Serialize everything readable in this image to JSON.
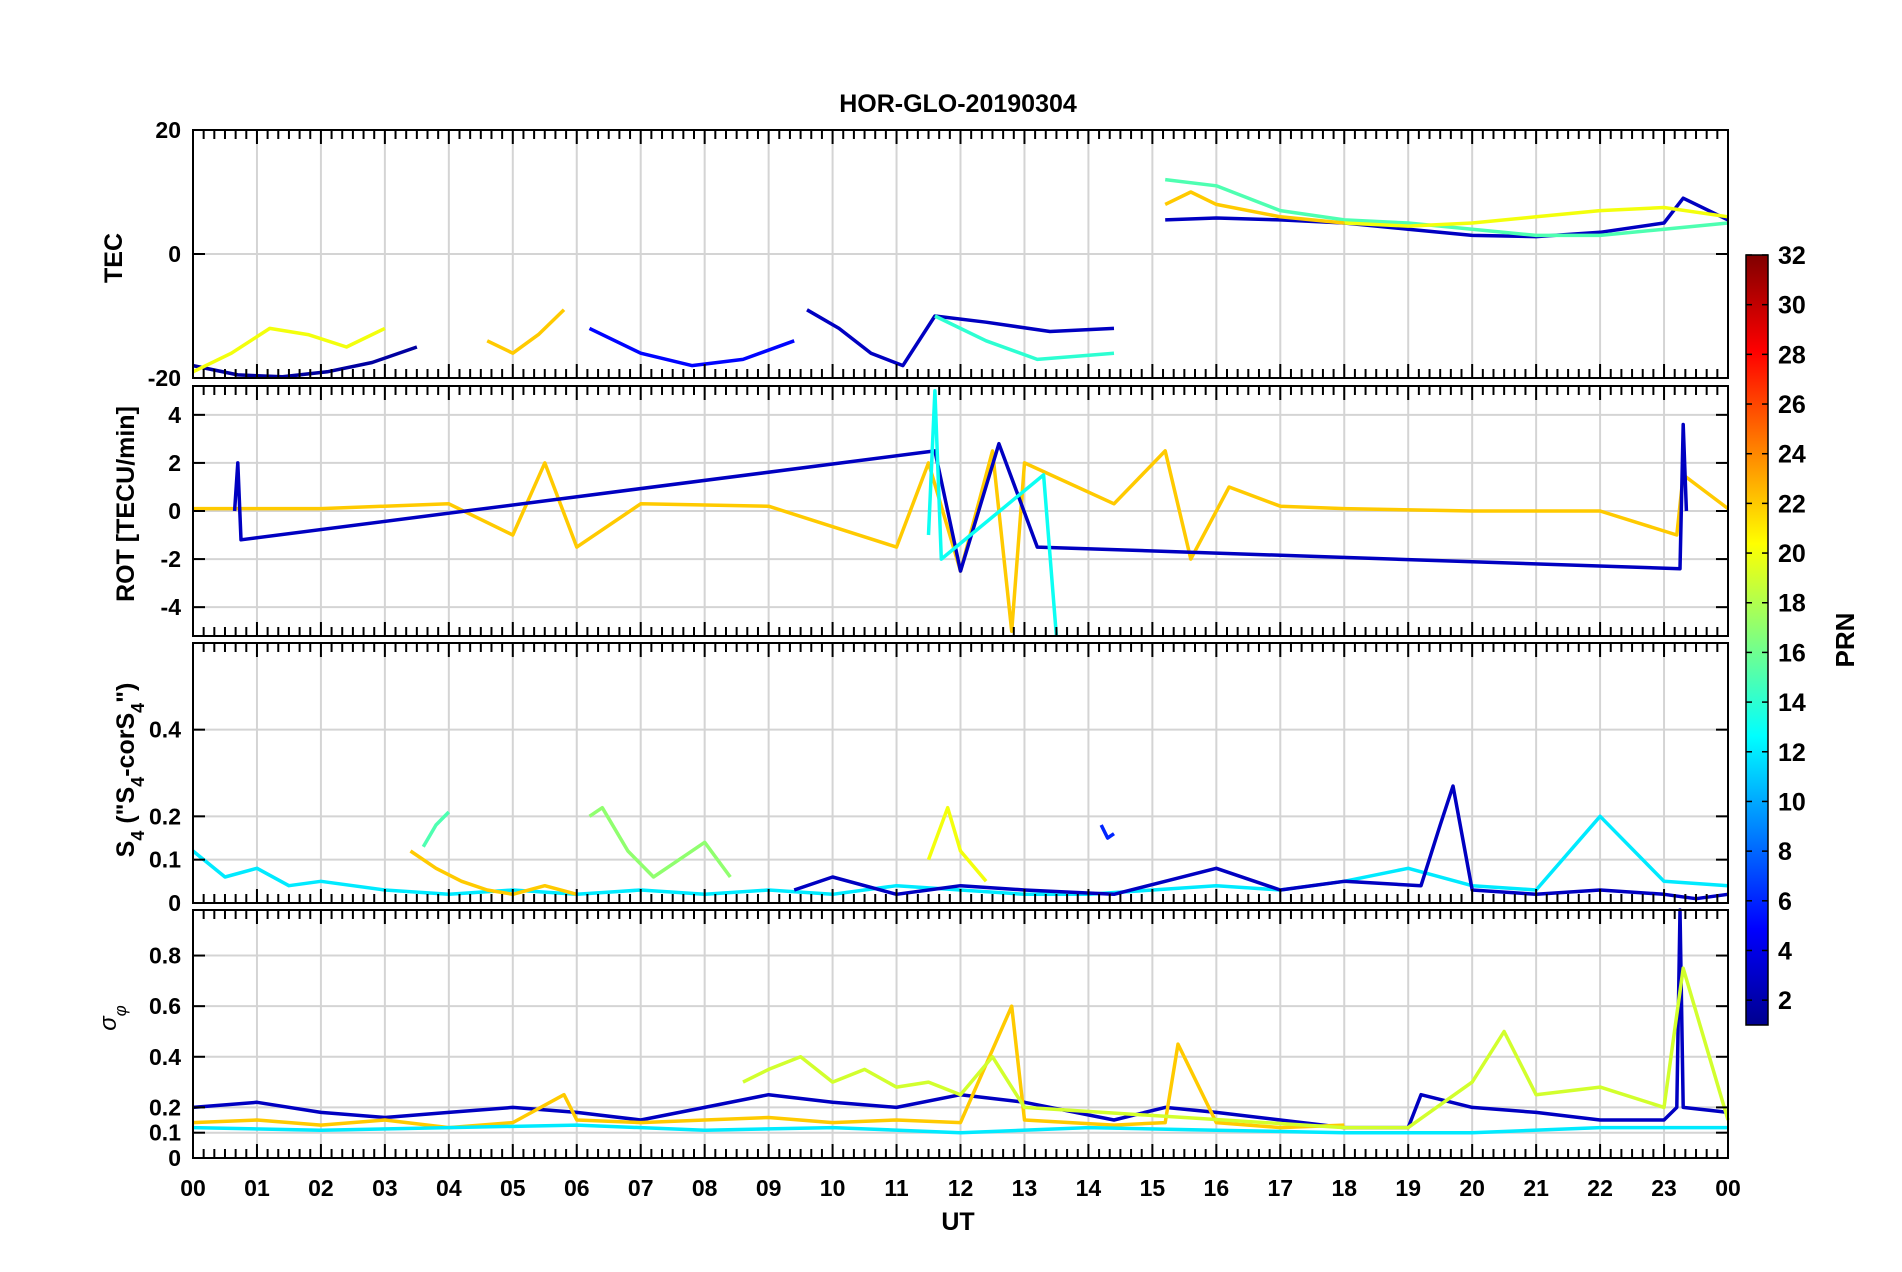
{
  "figure": {
    "title": "HOR-GLO-20190304",
    "xlabel": "UT",
    "x_tick_labels": [
      "00",
      "01",
      "02",
      "03",
      "04",
      "05",
      "06",
      "07",
      "08",
      "09",
      "10",
      "11",
      "12",
      "13",
      "14",
      "15",
      "16",
      "17",
      "18",
      "19",
      "20",
      "21",
      "22",
      "23",
      "00"
    ]
  },
  "colorbar": {
    "label": "PRN",
    "range": [
      1,
      32
    ],
    "tick_labels": [
      "2",
      "4",
      "6",
      "8",
      "10",
      "12",
      "14",
      "16",
      "18",
      "20",
      "22",
      "24",
      "26",
      "28",
      "30",
      "32"
    ],
    "tick_values": [
      2,
      4,
      6,
      8,
      10,
      12,
      14,
      16,
      18,
      20,
      22,
      24,
      26,
      28,
      30,
      32
    ]
  },
  "chart_data": [
    {
      "type": "line",
      "panel": "TEC",
      "ylabel": "TEC",
      "ylim": [
        -20,
        20
      ],
      "xlim": [
        0,
        24
      ],
      "grid": true,
      "y_ticks": [
        -20,
        0,
        20
      ],
      "y_tick_labels": [
        "-20",
        "0",
        "20"
      ],
      "series": [
        {
          "name": "PRN 2",
          "prn": 2,
          "x": [
            0,
            0.7,
            1.4,
            2.1,
            2.8,
            3.5
          ],
          "y": [
            -18,
            -19.5,
            -19.8,
            -19,
            -17.5,
            -15
          ]
        },
        {
          "name": "PRN 5",
          "prn": 5,
          "x": [
            6.2,
            7,
            7.8,
            8.6,
            9.4
          ],
          "y": [
            -12,
            -16,
            -18,
            -17,
            -14
          ]
        },
        {
          "name": "PRN 3",
          "prn": 3,
          "x": [
            9.6,
            10.1,
            10.6,
            11.1,
            11.6,
            12.4,
            13.4,
            14.4
          ],
          "y": [
            -9,
            -12,
            -16,
            -18,
            -10,
            -11,
            -12.5,
            -12
          ]
        },
        {
          "name": "PRN 20",
          "prn": 20,
          "x": [
            0,
            0.6,
            1.2,
            1.8,
            2.4,
            3
          ],
          "y": [
            -19,
            -16,
            -12,
            -13,
            -15,
            -12
          ]
        },
        {
          "name": "PRN 22",
          "prn": 22,
          "x": [
            4.6,
            5,
            5.4,
            5.8
          ],
          "y": [
            -14,
            -16,
            -13,
            -9
          ]
        },
        {
          "name": "PRN 14",
          "prn": 14,
          "x": [
            11.6,
            12.4,
            13.2,
            14.4
          ],
          "y": [
            -10,
            -14,
            -17,
            -16
          ]
        },
        {
          "name": "PRN 3",
          "prn": 3,
          "x": [
            15.2,
            16,
            17,
            18,
            19,
            20,
            21,
            22,
            23,
            23.3,
            24
          ],
          "y": [
            5.5,
            5.8,
            5.5,
            5,
            4,
            3,
            2.8,
            3.5,
            5,
            9,
            5.5
          ]
        },
        {
          "name": "PRN 15",
          "prn": 15,
          "x": [
            15.2,
            16,
            17,
            18,
            19,
            20,
            21,
            22,
            23,
            24
          ],
          "y": [
            12,
            11,
            7,
            5.5,
            5,
            4,
            3,
            3,
            4,
            5
          ]
        },
        {
          "name": "PRN 22",
          "prn": 22,
          "x": [
            15.2,
            15.6,
            16,
            17,
            18
          ],
          "y": [
            8,
            10,
            8,
            6,
            5
          ]
        },
        {
          "name": "PRN 20",
          "prn": 20,
          "x": [
            18,
            19,
            20,
            21,
            22,
            23,
            24
          ],
          "y": [
            5,
            4.5,
            5,
            6,
            7,
            7.5,
            6
          ]
        }
      ]
    },
    {
      "type": "line",
      "panel": "ROT",
      "ylabel": "ROT [TECU/min]",
      "ylim": [
        -5.2,
        5.2
      ],
      "xlim": [
        0,
        24
      ],
      "grid": true,
      "y_ticks": [
        -4,
        -2,
        0,
        2,
        4
      ],
      "y_tick_labels": [
        "-4",
        "-2",
        "0",
        "2",
        "4"
      ],
      "series": [
        {
          "name": "PRN 22",
          "prn": 22,
          "x": [
            0,
            2,
            4,
            5,
            5.5,
            6,
            7,
            9,
            11,
            11.5,
            12,
            12.5,
            12.8,
            13,
            14.4,
            15.2,
            15.6,
            16.2,
            17,
            18,
            20,
            22,
            23.2,
            23.3,
            24
          ],
          "y": [
            0.1,
            0.1,
            0.3,
            -1,
            2,
            -1.5,
            0.3,
            0.2,
            -1.5,
            2,
            -2.5,
            2.5,
            -5,
            2,
            0.3,
            2.5,
            -2,
            1,
            0.2,
            0.1,
            0,
            0,
            -1,
            1.5,
            0.1
          ]
        },
        {
          "name": "PRN 3",
          "prn": 3,
          "x": [
            0.65,
            0.7,
            0.75,
            11.6,
            12,
            12.6,
            13.2,
            23.25,
            23.3,
            23.35
          ],
          "y": [
            0,
            2,
            -1.2,
            2.5,
            -2.5,
            2.8,
            -1.5,
            -2.4,
            3.6,
            0
          ]
        },
        {
          "name": "PRN 13",
          "prn": 13,
          "x": [
            11.5,
            11.6,
            11.7,
            13.3,
            13.5
          ],
          "y": [
            -1,
            5,
            -2,
            1.5,
            -5.2
          ]
        }
      ]
    },
    {
      "type": "line",
      "panel": "S4",
      "ylabel": "S4 (\"S4-corS4\")",
      "ylim": [
        0,
        0.6
      ],
      "xlim": [
        0,
        24
      ],
      "grid": true,
      "y_ticks": [
        0,
        0.1,
        0.2,
        0.4
      ],
      "y_tick_labels": [
        "0",
        "0.1",
        "0.2",
        "0.4"
      ],
      "series": [
        {
          "name": "PRN 12",
          "prn": 12,
          "x": [
            0,
            0.5,
            1,
            1.5,
            2,
            3,
            4,
            5,
            6,
            7,
            8,
            9,
            10,
            11,
            12,
            13,
            14,
            15,
            16,
            17,
            18,
            19,
            20,
            21,
            22,
            23,
            24
          ],
          "y": [
            0.12,
            0.06,
            0.08,
            0.04,
            0.05,
            0.03,
            0.02,
            0.03,
            0.02,
            0.03,
            0.02,
            0.03,
            0.02,
            0.04,
            0.03,
            0.02,
            0.02,
            0.03,
            0.04,
            0.03,
            0.05,
            0.08,
            0.04,
            0.03,
            0.2,
            0.05,
            0.04
          ]
        },
        {
          "name": "PRN 22",
          "prn": 22,
          "x": [
            3.4,
            3.8,
            4.2,
            4.6,
            5,
            5.5,
            6
          ],
          "y": [
            0.12,
            0.08,
            0.05,
            0.03,
            0.02,
            0.04,
            0.02
          ]
        },
        {
          "name": "PRN 15",
          "prn": 15,
          "x": [
            3.6,
            3.8,
            4
          ],
          "y": [
            0.13,
            0.18,
            0.21
          ]
        },
        {
          "name": "PRN 17",
          "prn": 17,
          "x": [
            6.2,
            6.4,
            6.8,
            7.2,
            7.6,
            8,
            8.4
          ],
          "y": [
            0.2,
            0.22,
            0.12,
            0.06,
            0.1,
            0.14,
            0.06
          ]
        },
        {
          "name": "PRN 20",
          "prn": 20,
          "x": [
            11.5,
            11.8,
            12,
            12.4
          ],
          "y": [
            0.1,
            0.22,
            0.12,
            0.05
          ]
        },
        {
          "name": "PRN 3",
          "prn": 3,
          "x": [
            9.4,
            10,
            11,
            12,
            13,
            14.4,
            15.2,
            16,
            17,
            18,
            19.2,
            19.5,
            19.7,
            20,
            21,
            22,
            23,
            23.5,
            24
          ],
          "y": [
            0.03,
            0.06,
            0.02,
            0.04,
            0.03,
            0.02,
            0.05,
            0.08,
            0.03,
            0.05,
            0.04,
            0.18,
            0.27,
            0.03,
            0.02,
            0.03,
            0.02,
            0.01,
            0.02
          ]
        },
        {
          "name": "PRN 6",
          "prn": 6,
          "x": [
            14.2,
            14.3,
            14.4
          ],
          "y": [
            0.18,
            0.15,
            0.16
          ]
        }
      ]
    },
    {
      "type": "line",
      "panel": "sigma_phi",
      "ylabel": "σφ",
      "ylim": [
        0,
        0.98
      ],
      "xlim": [
        0,
        24
      ],
      "grid": true,
      "y_ticks": [
        0,
        0.1,
        0.2,
        0.4,
        0.6,
        0.8
      ],
      "y_tick_labels": [
        "0",
        "0.1",
        "0.2",
        "0.4",
        "0.6",
        "0.8"
      ],
      "series": [
        {
          "name": "PRN 3",
          "prn": 3,
          "x": [
            0,
            1,
            2,
            3,
            4,
            5,
            6,
            7,
            8,
            9,
            10,
            11,
            12,
            13,
            14.4,
            15.2,
            16,
            17,
            18,
            19,
            19.2,
            20,
            21,
            22,
            23,
            23.2,
            23.25,
            23.3,
            24
          ],
          "y": [
            0.2,
            0.22,
            0.18,
            0.16,
            0.18,
            0.2,
            0.18,
            0.15,
            0.2,
            0.25,
            0.22,
            0.2,
            0.25,
            0.22,
            0.15,
            0.2,
            0.18,
            0.15,
            0.12,
            0.12,
            0.25,
            0.2,
            0.18,
            0.15,
            0.15,
            0.2,
            0.98,
            0.2,
            0.18
          ]
        },
        {
          "name": "PRN 22",
          "prn": 22,
          "x": [
            0,
            1,
            2,
            3,
            4,
            5,
            5.8,
            6,
            7,
            8,
            9,
            10,
            11,
            12,
            12.8,
            13,
            14.4,
            15.2,
            15.4,
            16,
            17,
            18
          ],
          "y": [
            0.14,
            0.15,
            0.13,
            0.15,
            0.12,
            0.14,
            0.25,
            0.15,
            0.14,
            0.15,
            0.16,
            0.14,
            0.15,
            0.14,
            0.6,
            0.15,
            0.13,
            0.14,
            0.45,
            0.14,
            0.12,
            0.13
          ]
        },
        {
          "name": "PRN 19",
          "prn": 19,
          "x": [
            8.6,
            9,
            9.5,
            10,
            10.5,
            11,
            11.5,
            12,
            12.5,
            13,
            18,
            19,
            20,
            20.5,
            21,
            22,
            23,
            23.3,
            24
          ],
          "y": [
            0.3,
            0.35,
            0.4,
            0.3,
            0.35,
            0.28,
            0.3,
            0.25,
            0.4,
            0.2,
            0.12,
            0.12,
            0.3,
            0.5,
            0.25,
            0.28,
            0.2,
            0.75,
            0.15
          ]
        },
        {
          "name": "PRN 12",
          "prn": 12,
          "x": [
            0,
            2,
            4,
            6,
            8,
            10,
            12,
            14,
            16,
            18,
            20,
            22,
            24
          ],
          "y": [
            0.12,
            0.11,
            0.12,
            0.13,
            0.11,
            0.12,
            0.1,
            0.12,
            0.11,
            0.1,
            0.1,
            0.12,
            0.12
          ]
        }
      ]
    }
  ]
}
